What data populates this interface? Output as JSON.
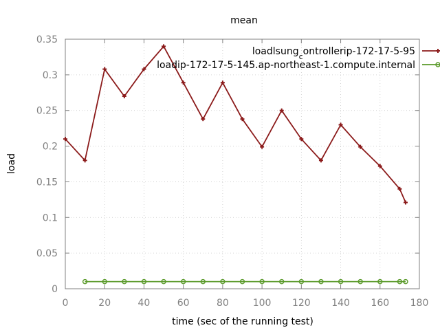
{
  "chart_data": {
    "type": "line",
    "title": "mean",
    "xlabel": "time (sec of the running test)",
    "ylabel": "load",
    "xlim": [
      0,
      180
    ],
    "ylim": [
      0,
      0.35
    ],
    "x_ticks": [
      "0",
      "20",
      "40",
      "60",
      "80",
      "100",
      "120",
      "140",
      "160",
      "180"
    ],
    "y_ticks": [
      "0",
      "0.05",
      "0.1",
      "0.15",
      "0.2",
      "0.25",
      "0.3",
      "0.35"
    ],
    "grid": true,
    "legend_position": "top-right",
    "series": [
      {
        "name": "loadlsung_controller_ip-172-17-5-95",
        "legend_text": {
          "pre": "loadlsung",
          "sub": "c",
          "post": "ontrollerip-172-17-5-95"
        },
        "color": "#8b1a1a",
        "marker": "plus",
        "x": [
          0,
          10,
          20,
          30,
          40,
          50,
          60,
          70,
          80,
          90,
          100,
          110,
          120,
          130,
          140,
          150,
          160,
          170,
          173
        ],
        "y": [
          0.21,
          0.18,
          0.308,
          0.27,
          0.308,
          0.34,
          0.289,
          0.238,
          0.289,
          0.238,
          0.199,
          0.25,
          0.21,
          0.18,
          0.23,
          0.199,
          0.172,
          0.14,
          0.121
        ]
      },
      {
        "name": "loadip-172-17-5-145.ap-northeast-1.compute.internal",
        "legend_text": {
          "pre": "loadip-172-17-5-145.ap-northeast-1.compute.internal",
          "sub": "",
          "post": ""
        },
        "color": "#5a9a2a",
        "marker": "circle",
        "x": [
          10,
          20,
          30,
          40,
          50,
          60,
          70,
          80,
          90,
          100,
          110,
          120,
          130,
          140,
          150,
          160,
          170,
          173
        ],
        "y": [
          0.01,
          0.01,
          0.01,
          0.01,
          0.01,
          0.01,
          0.01,
          0.01,
          0.01,
          0.01,
          0.01,
          0.01,
          0.01,
          0.01,
          0.01,
          0.01,
          0.01,
          0.01
        ]
      }
    ]
  }
}
